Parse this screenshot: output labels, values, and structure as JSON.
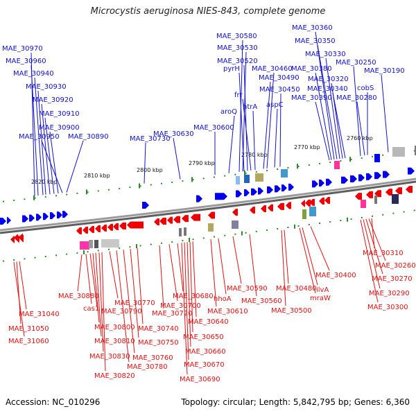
{
  "title": "Microcystis aeruginosa NIES-843, complete genome",
  "footer": {
    "accession": "Accession: NC_010296",
    "topology": "Topology: circular; Length: 5,842,795 bp; Genes: 6,360"
  },
  "colors": {
    "forward": "#0000ee",
    "reverse": "#ee0000",
    "label_forward": "#1010c8",
    "label_reverse": "#e01010",
    "backbone": "#808080",
    "tick": "#2a8a2a"
  },
  "scale_marks": [
    "2820 kbp",
    "2810 kbp",
    "2800 kbp",
    "2790 kbp",
    "2780 kbp",
    "2770 kbp",
    "2760 kbp"
  ],
  "forward_labels": [
    {
      "text": "MAE_30970",
      "pos": 0.06
    },
    {
      "text": "MAE_30960",
      "pos": 0.085
    },
    {
      "text": "MAE_30940",
      "pos": 0.105
    },
    {
      "text": "MAE_30930",
      "pos": 0.12
    },
    {
      "text": "MAE_30920",
      "pos": 0.13
    },
    {
      "text": "MAE_30910",
      "pos": 0.14
    },
    {
      "text": "MAE_30900",
      "pos": 0.15
    },
    {
      "text": "MAE_30950",
      "pos": 0.16
    },
    {
      "text": "MAE_30890",
      "pos": 0.17
    },
    {
      "text": "MAE_30730",
      "pos": 0.35
    },
    {
      "text": "MAE_30630",
      "pos": 0.48
    },
    {
      "text": "MAE_30600",
      "pos": 0.555
    },
    {
      "text": "aroQ",
      "pos": 0.575
    },
    {
      "text": "MAE_30580",
      "pos": 0.585
    },
    {
      "text": "MAE_30530",
      "pos": 0.595
    },
    {
      "text": "pyrH",
      "pos": 0.6
    },
    {
      "text": "MAE_30520",
      "pos": 0.605
    },
    {
      "text": "frr",
      "pos": 0.61
    },
    {
      "text": "htrA",
      "pos": 0.62
    },
    {
      "text": "MAE_30490",
      "pos": 0.64
    },
    {
      "text": "MAE_30460",
      "pos": 0.655
    },
    {
      "text": "aspC",
      "pos": 0.665
    },
    {
      "text": "MAE_30450",
      "pos": 0.675
    },
    {
      "text": "MAE_30360",
      "pos": 0.745
    },
    {
      "text": "MAE_30350",
      "pos": 0.755
    },
    {
      "text": "MAE_30380",
      "pos": 0.76
    },
    {
      "text": "MAE_30330",
      "pos": 0.77
    },
    {
      "text": "MAE_30320",
      "pos": 0.785
    },
    {
      "text": "MAE_30340",
      "pos": 0.79
    },
    {
      "text": "MAE_30390",
      "pos": 0.795
    },
    {
      "text": "MAE_30250",
      "pos": 0.83
    },
    {
      "text": "cobS",
      "pos": 0.84
    },
    {
      "text": "MAE_30280",
      "pos": 0.85
    },
    {
      "text": "MAE_30190",
      "pos": 0.92
    }
  ],
  "reverse_labels": [
    {
      "text": "MAE_31060",
      "pos": 0.04
    },
    {
      "text": "MAE_31050",
      "pos": 0.05
    },
    {
      "text": "MAE_31040",
      "pos": 0.06
    },
    {
      "text": "MAE_30880",
      "pos": 0.2
    },
    {
      "text": "cas1",
      "pos": 0.21
    },
    {
      "text": "MAE_30790",
      "pos": 0.225
    },
    {
      "text": "MAE_30800",
      "pos": 0.23
    },
    {
      "text": "MAE_30810",
      "pos": 0.235
    },
    {
      "text": "MAE_30830",
      "pos": 0.24
    },
    {
      "text": "MAE_30820",
      "pos": 0.245
    },
    {
      "text": "MAE_30770",
      "pos": 0.27
    },
    {
      "text": "MAE_30780",
      "pos": 0.3
    },
    {
      "text": "MAE_30760",
      "pos": 0.31
    },
    {
      "text": "MAE_30750",
      "pos": 0.32
    },
    {
      "text": "MAE_30740",
      "pos": 0.34
    },
    {
      "text": "MAE_30720",
      "pos": 0.37
    },
    {
      "text": "MAE_30700",
      "pos": 0.42
    },
    {
      "text": "MAE_30680",
      "pos": 0.43
    },
    {
      "text": "MAE_30690",
      "pos": 0.435
    },
    {
      "text": "MAE_30670",
      "pos": 0.44
    },
    {
      "text": "MAE_30660",
      "pos": 0.445
    },
    {
      "text": "MAE_30650",
      "pos": 0.45
    },
    {
      "text": "MAE_30640",
      "pos": 0.455
    },
    {
      "text": "MAE_30610",
      "pos": 0.5
    },
    {
      "text": "hhoA",
      "pos": 0.51
    },
    {
      "text": "MAE_30590",
      "pos": 0.535
    },
    {
      "text": "MAE_30560",
      "pos": 0.58
    },
    {
      "text": "MAE_30500",
      "pos": 0.665
    },
    {
      "text": "MAE_30480",
      "pos": 0.68
    },
    {
      "text": "mraW",
      "pos": 0.72
    },
    {
      "text": "ilvA",
      "pos": 0.735
    },
    {
      "text": "MAE_30400",
      "pos": 0.76
    },
    {
      "text": "MAE_30300",
      "pos": 0.885
    },
    {
      "text": "MAE_30290",
      "pos": 0.89
    },
    {
      "text": "MAE_30270",
      "pos": 0.9
    },
    {
      "text": "MAE_30260",
      "pos": 0.91
    },
    {
      "text": "MAE_30310",
      "pos": 0.92
    }
  ]
}
